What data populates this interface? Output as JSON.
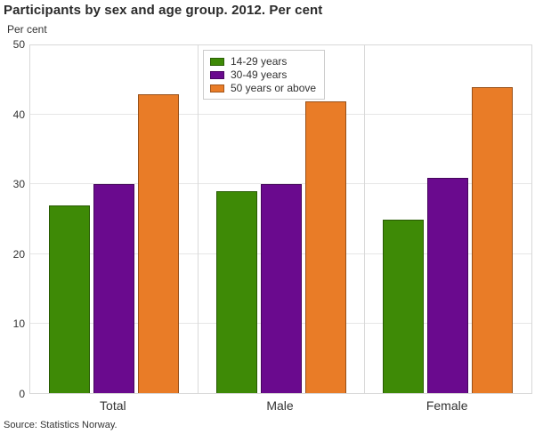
{
  "chart_data": {
    "type": "bar",
    "title": "Participants by sex and age group. 2012. Per cent",
    "ylabel": "Per cent",
    "xlabel": "",
    "categories": [
      "Total",
      "Male",
      "Female"
    ],
    "series": [
      {
        "name": "14-29 years",
        "color": "#3E8A06",
        "values": [
          27,
          29,
          25
        ]
      },
      {
        "name": "30-49 years",
        "color": "#6A0A8E",
        "values": [
          30,
          30,
          31
        ]
      },
      {
        "name": "50 years or above",
        "color": "#E97C27",
        "values": [
          43,
          42,
          44
        ]
      }
    ],
    "ylim": [
      0,
      50
    ],
    "yticks": [
      0,
      10,
      20,
      30,
      40,
      50
    ],
    "grid": true,
    "legend_position": "top-inside-center-left",
    "group_separators": true
  },
  "source_note": "Source: Statistics Norway.",
  "colors": {
    "background": "#ffffff",
    "title_text": "#2b2b2b",
    "axis_text": "#333333",
    "gridline": "#e6e6e6",
    "plot_border": "#d8d8d8",
    "group_separator": "#d9d9d9",
    "bar_border": "rgba(0,0,0,0.35)",
    "legend_border": "#cccccc"
  }
}
